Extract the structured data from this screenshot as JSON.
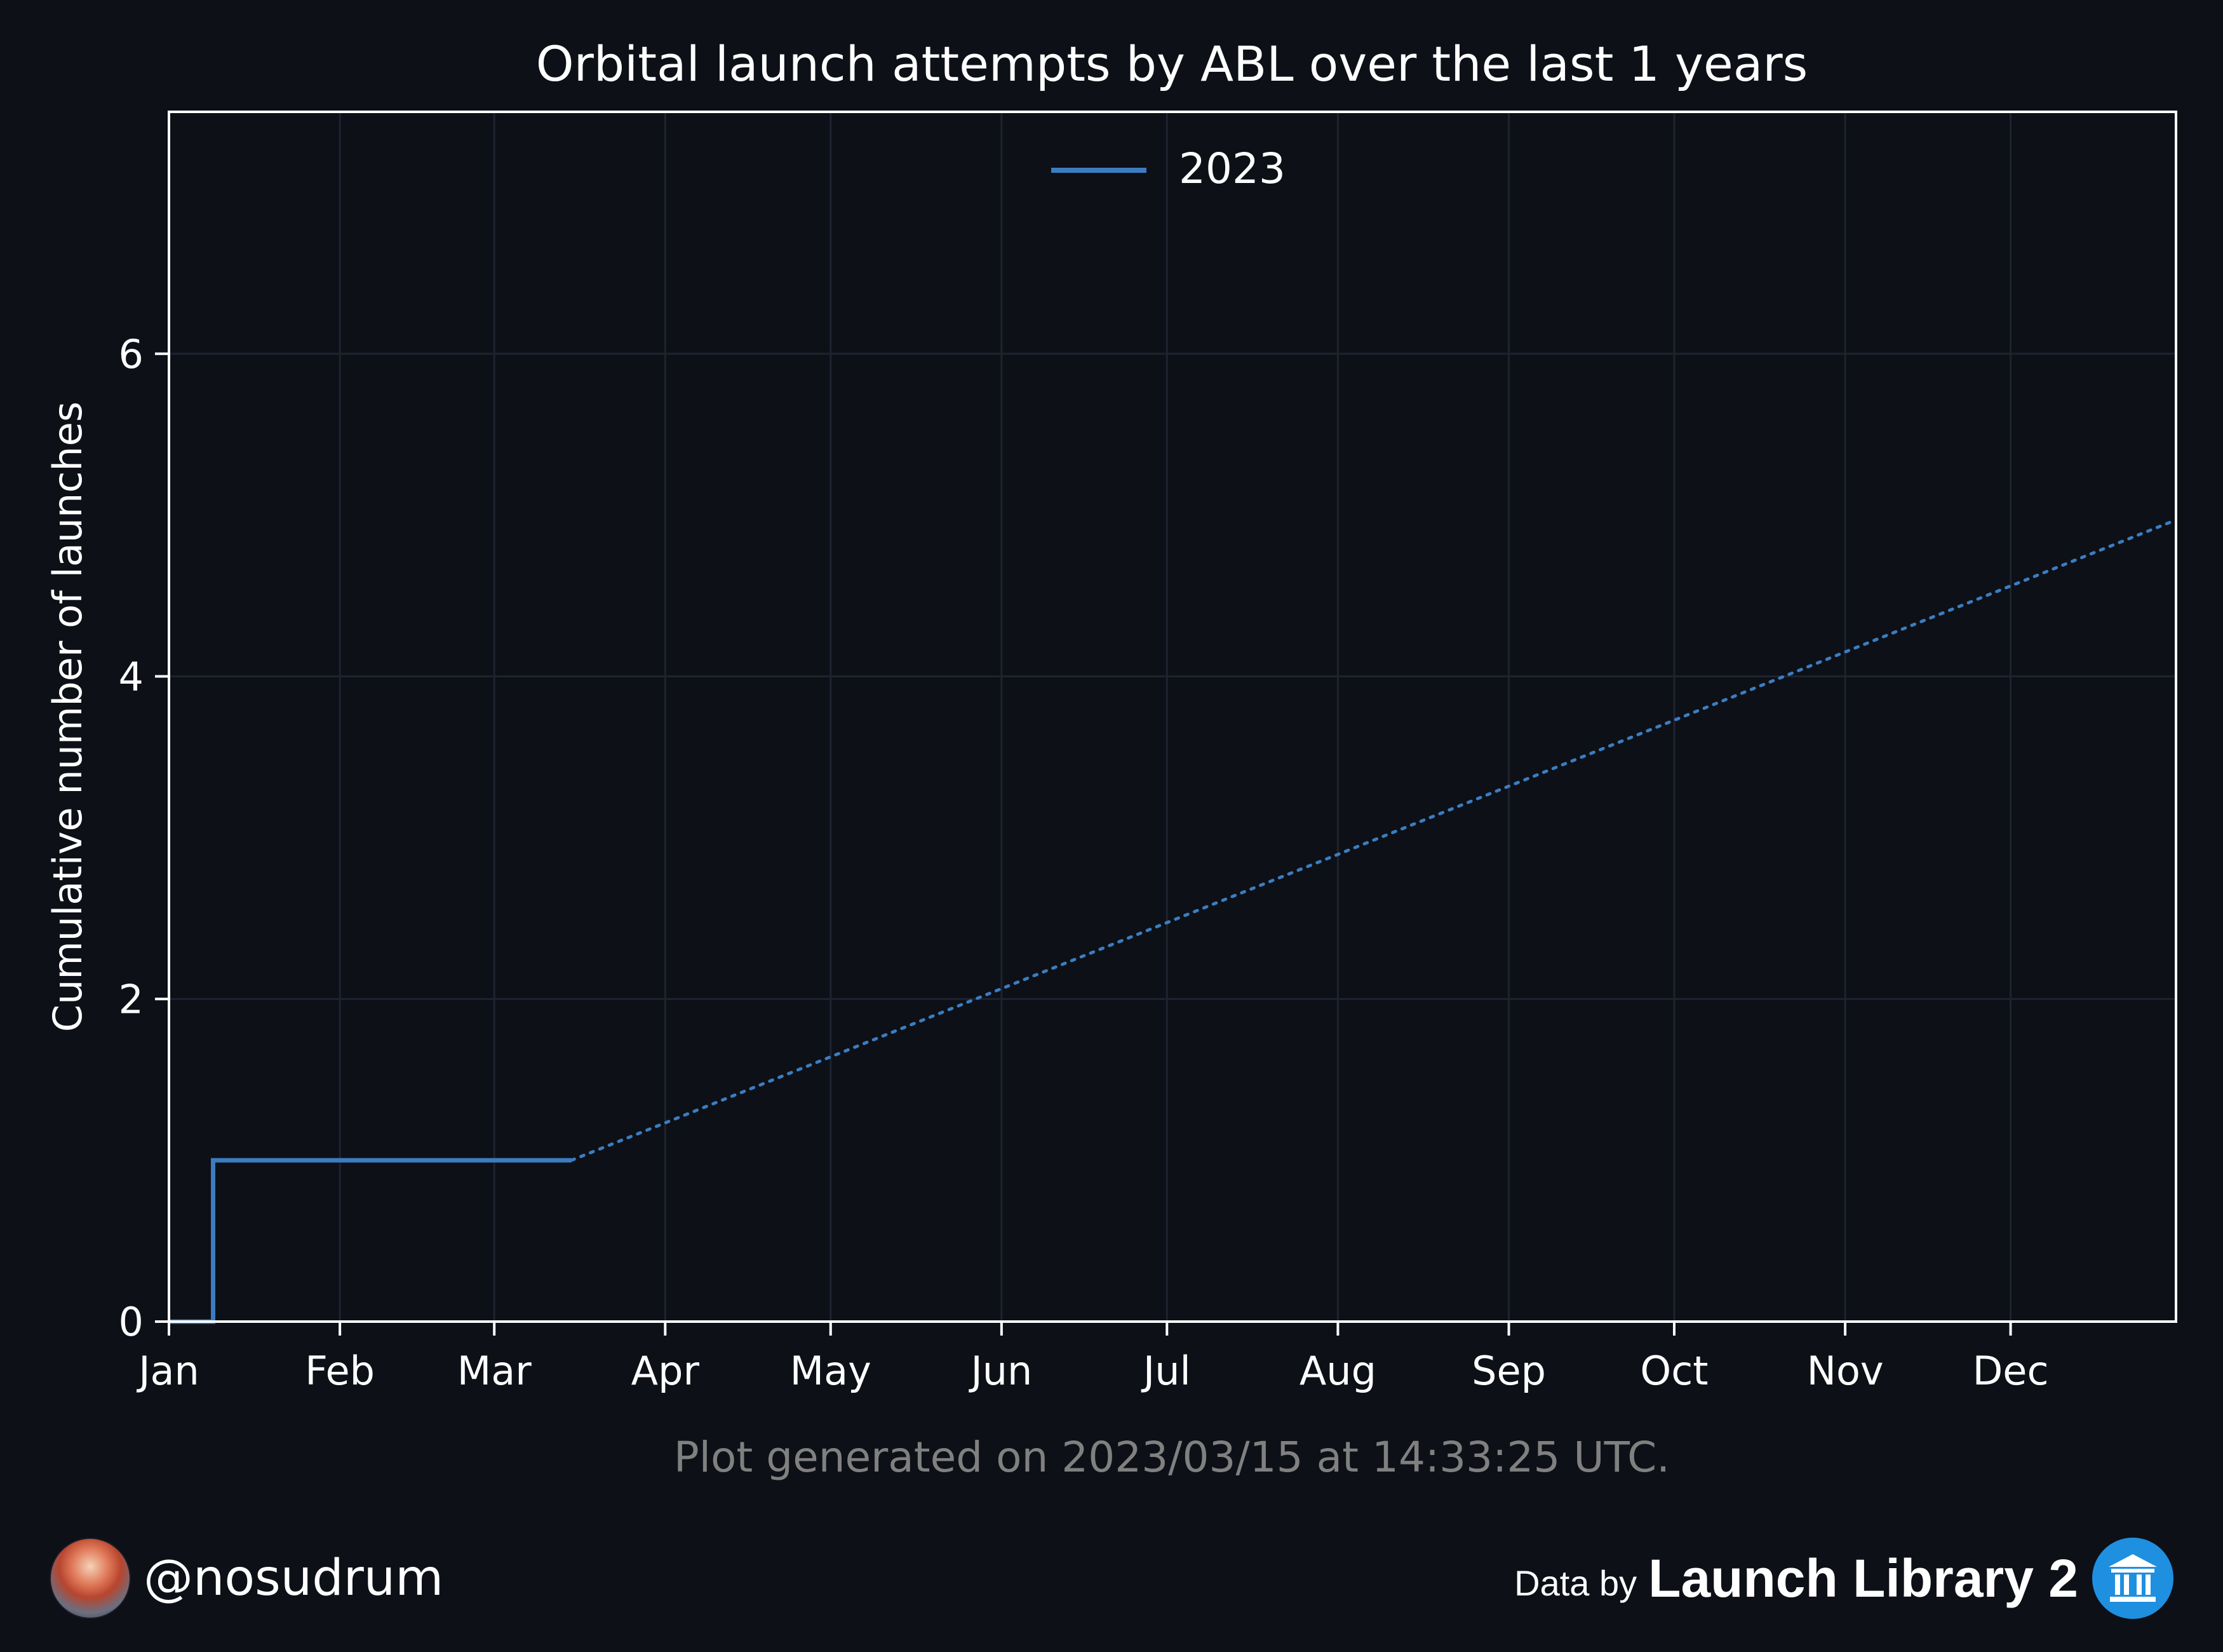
{
  "colors": {
    "background": "#0d1017",
    "axis": "#ffffff",
    "grid": "#1e2330",
    "series": "#3b7dc0",
    "footnote": "#808080",
    "logo": "#1f8fe0"
  },
  "footnote": "Plot generated on 2023/03/15 at 14:33:25 UTC.",
  "footer": {
    "handle": "@nosudrum",
    "credit_prefix": "Data by",
    "credit_name": "Launch Library 2",
    "avatar_icon": "astronaut-avatar-icon",
    "logo_icon": "launch-library-logo-icon"
  },
  "chart_data": {
    "type": "line",
    "title": "Orbital launch attempts by ABL over the last 1 years",
    "xlabel": "",
    "ylabel": "Cumulative number of launches",
    "x_tick_labels": [
      "Jan",
      "Feb",
      "Mar",
      "Apr",
      "May",
      "Jun",
      "Jul",
      "Aug",
      "Sep",
      "Oct",
      "Nov",
      "Dec"
    ],
    "y_ticks": [
      0,
      2,
      4,
      6
    ],
    "xlim": [
      "2023-01-01",
      "2023-12-31"
    ],
    "ylim": [
      0,
      7.5
    ],
    "grid": true,
    "legend": {
      "placement": "top-center",
      "entries": [
        "2023"
      ]
    },
    "series": [
      {
        "name": "2023",
        "style": "step",
        "x": [
          "2023-01-01",
          "2023-01-09",
          "2023-01-09",
          "2023-03-15"
        ],
        "y": [
          0,
          0,
          1,
          1
        ]
      },
      {
        "style": "dotted",
        "x": [
          "2023-03-15",
          "2023-12-31"
        ],
        "y": [
          1,
          4.97
        ]
      }
    ]
  }
}
